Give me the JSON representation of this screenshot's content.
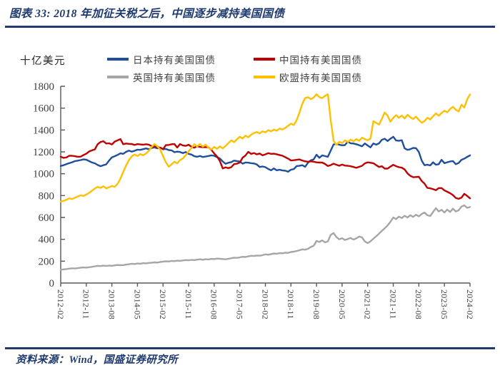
{
  "header": {
    "title": "图表 33: 2018 年加征关税之后，中国逐步减持美国国债"
  },
  "footer": {
    "source": "资料来源：Wind，国盛证券研究所"
  },
  "colors": {
    "accent_navy": "#1e3a6e",
    "japan": "#1f4e9e",
    "china": "#c00000",
    "uk": "#a6a6a6",
    "eu": "#ffc000",
    "axis": "#595959",
    "tick_text": "#3f3f3f"
  },
  "chart_data": {
    "type": "line",
    "title": "图表 33: 2018 年加征关税之后，中国逐步减持美国国债",
    "ylabel": "十亿美元",
    "xlabel": "",
    "ylim": [
      0,
      1800
    ],
    "ytick_step": 200,
    "grid": false,
    "legend_position": "top",
    "x_start": "2012-02",
    "x_end": "2024-02",
    "x_interval": "monthly",
    "x_tick_labels": [
      "2012-02",
      "2012-11",
      "2013-08",
      "2014-05",
      "2015-02",
      "2015-11",
      "2016-08",
      "2017-05",
      "2018-02",
      "2018-11",
      "2019-08",
      "2020-05",
      "2021-02",
      "2021-11",
      "2022-08",
      "2023-05",
      "2024-02"
    ],
    "series": [
      {
        "name": "日本持有美国国债",
        "color": "#1f4e9e",
        "values": [
          1070,
          1078,
          1088,
          1096,
          1105,
          1115,
          1120,
          1125,
          1131,
          1128,
          1115,
          1103,
          1095,
          1080,
          1069,
          1078,
          1085,
          1120,
          1150,
          1160,
          1172,
          1186,
          1182,
          1200,
          1212,
          1202,
          1210,
          1220,
          1218,
          1225,
          1231,
          1224,
          1235,
          1241,
          1232,
          1239,
          1224,
          1227,
          1216,
          1214,
          1197,
          1202,
          1199,
          1188,
          1198,
          1182,
          1175,
          1160,
          1155,
          1162,
          1153,
          1157,
          1162,
          1168,
          1164,
          1151,
          1140,
          1112,
          1091,
          1100,
          1106,
          1120,
          1116,
          1111,
          1092,
          1103,
          1101,
          1096,
          1094,
          1084,
          1062,
          1066,
          1060,
          1044,
          1031,
          1049,
          1031,
          1036,
          1030,
          1028,
          1018,
          1037,
          1042,
          1070,
          1072,
          1078,
          1064,
          1101,
          1123,
          1131,
          1174,
          1146,
          1168,
          1161,
          1155,
          1212,
          1268,
          1272,
          1266,
          1260,
          1262,
          1293,
          1278,
          1276,
          1270,
          1261,
          1251,
          1277,
          1258,
          1241,
          1277,
          1266,
          1278,
          1310,
          1320,
          1299,
          1320,
          1338,
          1304,
          1302,
          1306,
          1232,
          1218,
          1224,
          1236,
          1234,
          1199,
          1120,
          1078,
          1082,
          1076,
          1104,
          1082,
          1087,
          1127,
          1097,
          1105,
          1112,
          1116,
          1087,
          1098,
          1127,
          1138,
          1153,
          1168
        ]
      },
      {
        "name": "中国持有美国国债",
        "color": "#c00000",
        "values": [
          1155,
          1145,
          1149,
          1164,
          1164,
          1160,
          1155,
          1156,
          1170,
          1183,
          1203,
          1214,
          1223,
          1270,
          1290,
          1297,
          1276,
          1279,
          1268,
          1294,
          1305,
          1317,
          1270,
          1276,
          1273,
          1272,
          1263,
          1271,
          1268,
          1265,
          1270,
          1266,
          1253,
          1250,
          1244,
          1239,
          1224,
          1261,
          1263,
          1270,
          1271,
          1240,
          1271,
          1258,
          1255,
          1265,
          1246,
          1238,
          1252,
          1245,
          1243,
          1244,
          1241,
          1219,
          1185,
          1157,
          1116,
          1049,
          1058,
          1051,
          1060,
          1088,
          1092,
          1102,
          1147,
          1166,
          1200,
          1181,
          1189,
          1177,
          1185,
          1168,
          1177,
          1188,
          1182,
          1183,
          1178,
          1171,
          1165,
          1151,
          1139,
          1121,
          1124,
          1127,
          1131,
          1121,
          1113,
          1110,
          1113,
          1110,
          1104,
          1102,
          1102,
          1089,
          1070,
          1079,
          1092,
          1082,
          1073,
          1084,
          1074,
          1073,
          1068,
          1062,
          1054,
          1063,
          1072,
          1095,
          1104,
          1100,
          1096,
          1078,
          1062,
          1068,
          1047,
          1047,
          1065,
          1081,
          1069,
          1060,
          1055,
          1039,
          1003,
          981,
          968,
          970,
          972,
          933,
          910,
          870,
          867,
          859,
          849,
          869,
          869,
          847,
          835,
          822,
          805,
          778,
          770,
          782,
          816,
          797,
          775
        ]
      },
      {
        "name": "英国持有美国国债",
        "color": "#a6a6a6",
        "values": [
          121,
          125,
          128,
          132,
          135,
          133,
          136,
          140,
          143,
          141,
          145,
          148,
          153,
          157,
          155,
          159,
          156,
          160,
          158,
          162,
          165,
          163,
          164,
          168,
          172,
          176,
          174,
          179,
          177,
          182,
          180,
          184,
          186,
          189,
          187,
          192,
          196,
          199,
          197,
          202,
          200,
          205,
          203,
          207,
          210,
          208,
          212,
          210,
          214,
          217,
          213,
          218,
          216,
          221,
          219,
          224,
          222,
          220,
          217,
          222,
          227,
          232,
          230,
          235,
          240,
          238,
          244,
          249,
          247,
          252,
          250,
          255,
          262,
          259,
          265,
          270,
          268,
          274,
          272,
          278,
          276,
          284,
          287,
          293,
          300,
          308,
          305,
          313,
          330,
          341,
          385,
          376,
          390,
          372,
          381,
          440,
          457,
          420,
          400,
          410,
          394,
          403,
          412,
          398,
          408,
          425,
          418,
          380,
          365,
          382,
          405,
          428,
          452,
          477,
          500,
          527,
          560,
          600,
          585,
          608,
          595,
          615,
          600,
          620,
          605,
          625,
          610,
          632,
          645,
          620,
          613,
          650,
          685,
          655,
          670,
          645,
          672,
          650,
          680,
          655,
          665,
          700,
          711,
          688,
          695
        ]
      },
      {
        "name": "欧盟持有美国国债",
        "color": "#ffc000",
        "values": [
          745,
          752,
          762,
          775,
          768,
          780,
          792,
          802,
          796,
          810,
          825,
          845,
          865,
          880,
          870,
          885,
          866,
          875,
          888,
          880,
          908,
          955,
          1015,
          1075,
          1125,
          1160,
          1175,
          1162,
          1180,
          1168,
          1185,
          1210,
          1245,
          1272,
          1250,
          1220,
          1160,
          1105,
          1065,
          1085,
          1110,
          1095,
          1125,
          1140,
          1170,
          1205,
          1235,
          1270,
          1250,
          1272,
          1248,
          1265,
          1238,
          1222,
          1245,
          1228,
          1250,
          1232,
          1255,
          1280,
          1305,
          1288,
          1315,
          1338,
          1322,
          1348,
          1333,
          1358,
          1372,
          1382,
          1368,
          1388,
          1378,
          1398,
          1388,
          1404,
          1394,
          1413,
          1404,
          1419,
          1438,
          1458,
          1445,
          1490,
          1560,
          1640,
          1692,
          1700,
          1682,
          1697,
          1727,
          1700,
          1692,
          1712,
          1727,
          1490,
          1300,
          1265,
          1292,
          1280,
          1305,
          1290,
          1312,
          1296,
          1316,
          1302,
          1330,
          1316,
          1306,
          1322,
          1480,
          1465,
          1450,
          1502,
          1560,
          1530,
          1476,
          1512,
          1536,
          1512,
          1532,
          1506,
          1540,
          1516,
          1500,
          1522,
          1492,
          1466,
          1482,
          1512,
          1496,
          1526,
          1552,
          1530,
          1556,
          1576,
          1562,
          1592,
          1612,
          1585,
          1570,
          1632,
          1605,
          1680,
          1725
        ]
      }
    ]
  }
}
